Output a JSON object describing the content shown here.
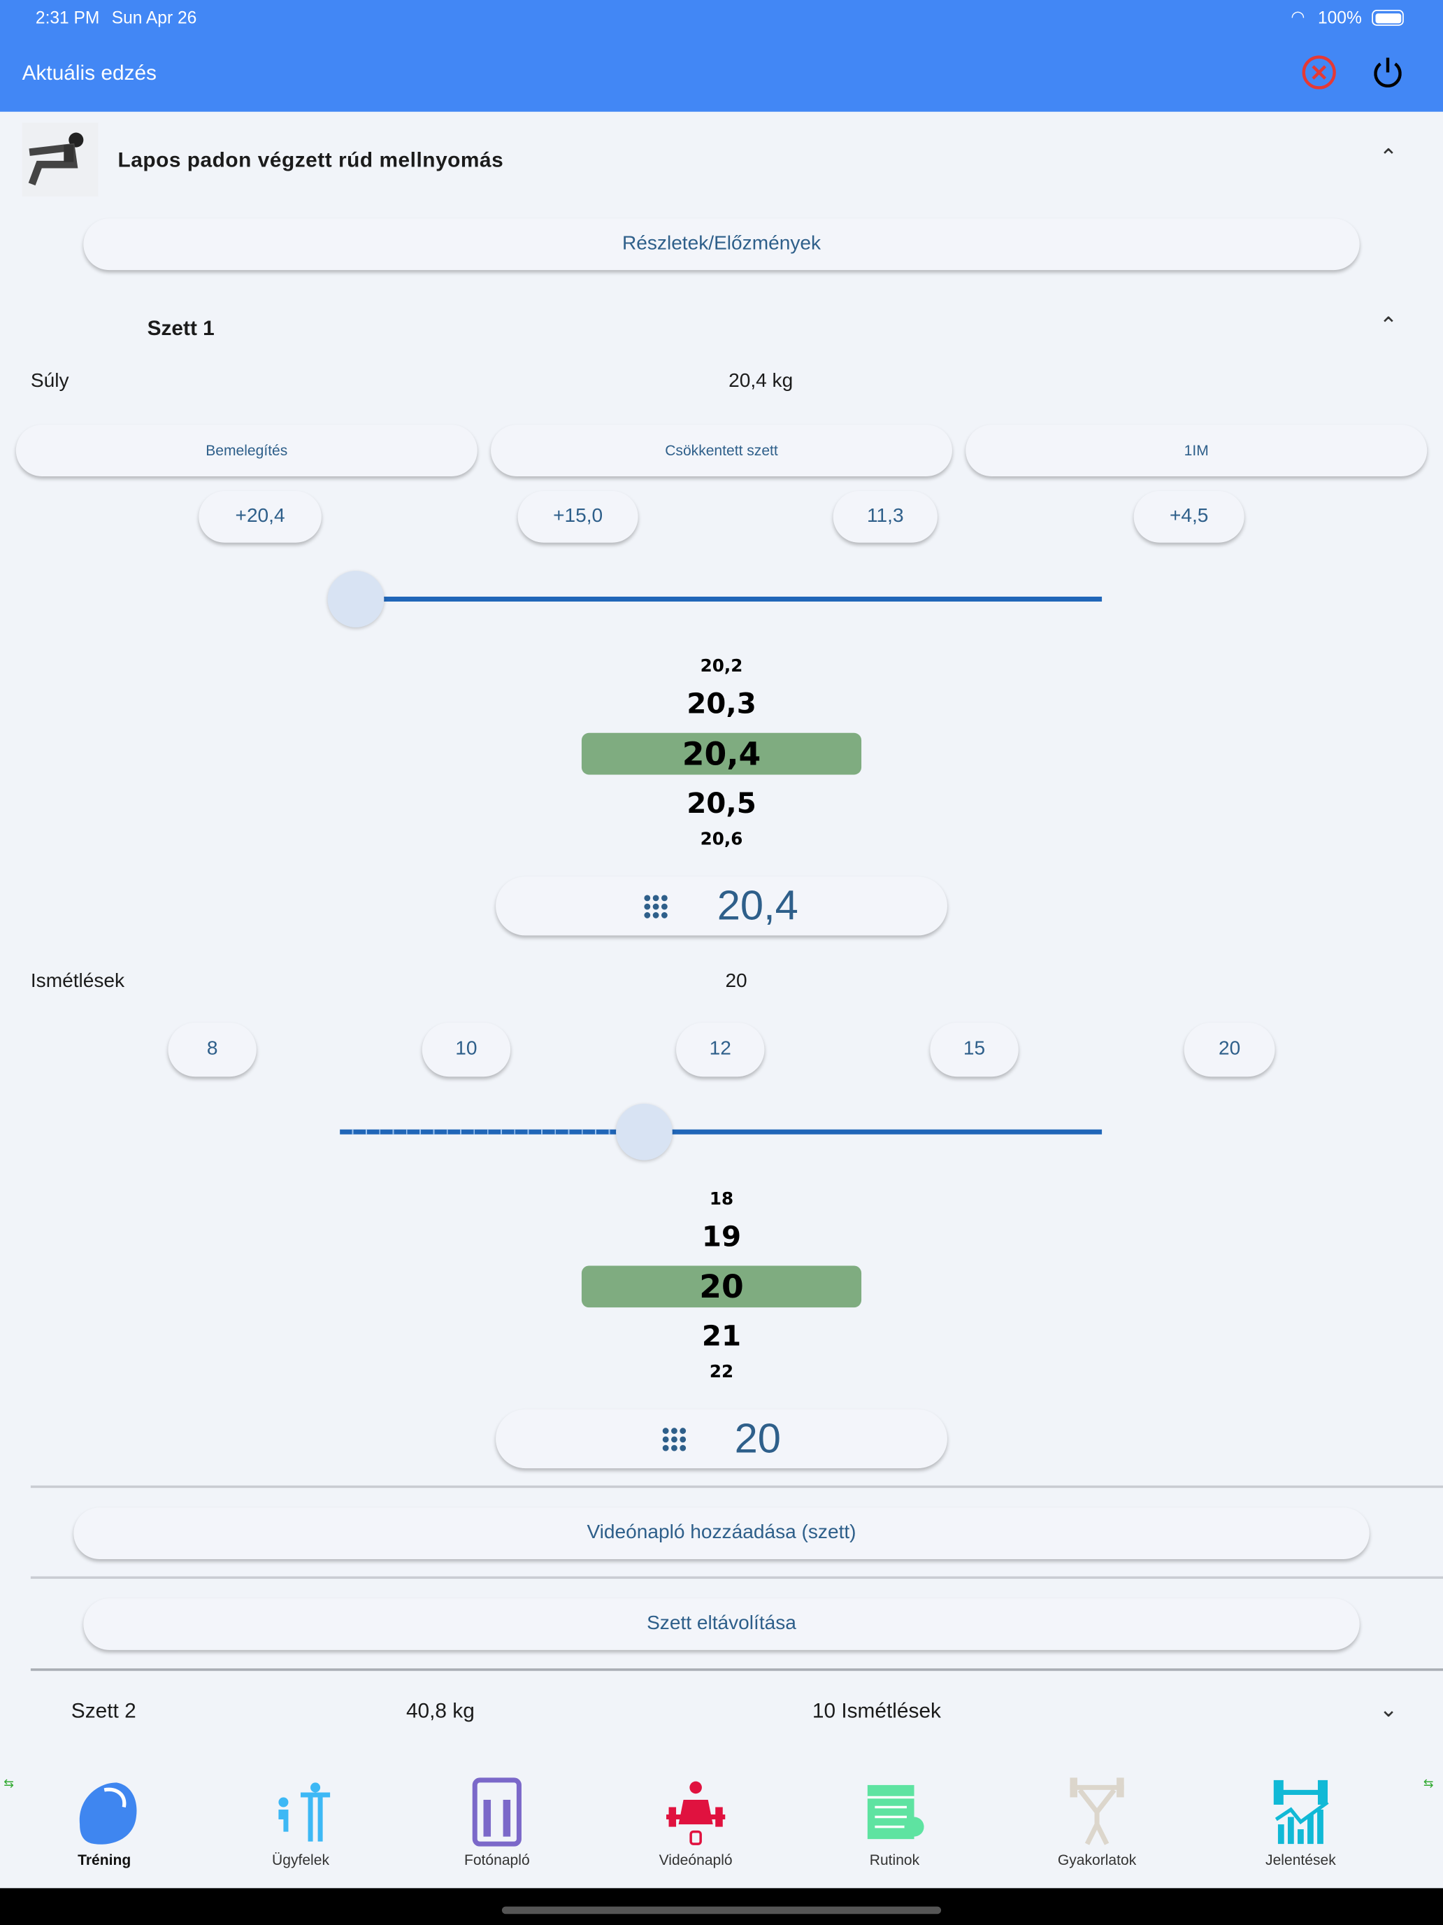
{
  "status_bar": {
    "time": "2:31 PM",
    "date": "Sun Apr 26",
    "battery": "100%"
  },
  "app_bar": {
    "title": "Aktuális edzés"
  },
  "colors": {
    "app_bar": "#4287f5",
    "accent": "#2066b8",
    "selected": "#7fac80",
    "cancel": "#e53935"
  },
  "exercise": {
    "title": "Lapos padon végzett rúd mellnyomás",
    "details_button": "Részletek/Előzmények"
  },
  "set1": {
    "title": "Szett 1",
    "weight_label": "Súly",
    "weight_value": "20,4 kg",
    "type_buttons": [
      "Bemelegítés",
      "Csökkentett szett",
      "1IM"
    ],
    "weight_quick": [
      "+20,4",
      "+15,0",
      "11,3",
      "+4,5"
    ],
    "weight_slider_fraction": 0.0,
    "weight_picker": [
      "20,2",
      "20,3",
      "20,4",
      "20,5",
      "20,6"
    ],
    "weight_input": "20,4",
    "reps_label": "Ismétlések",
    "reps_value": "20",
    "reps_quick": [
      "8",
      "10",
      "12",
      "15",
      "20"
    ],
    "reps_slider_fraction": 0.4,
    "reps_picker": [
      "18",
      "19",
      "20",
      "21",
      "22"
    ],
    "reps_input": "20",
    "video_button": "Videónapló hozzáadása (szett)",
    "remove_button": "Szett eltávolítása"
  },
  "set2": {
    "title": "Szett 2",
    "weight": "40,8 kg",
    "reps": "10 Ismétlések"
  },
  "nav": [
    {
      "label": "Tréning",
      "icon": "bicep-icon",
      "color": "#3f86f0"
    },
    {
      "label": "Ügyfelek",
      "icon": "clients-icon",
      "color": "#3db8f5"
    },
    {
      "label": "Fotónapló",
      "icon": "photo-log-icon",
      "color": "#7b68c9"
    },
    {
      "label": "Videónapló",
      "icon": "video-log-icon",
      "color": "#e0123f"
    },
    {
      "label": "Rutinok",
      "icon": "calendar-icon",
      "color": "#5ee3a1"
    },
    {
      "label": "Gyakorlatok",
      "icon": "weightlifter-icon",
      "color": "#dcd6cc"
    },
    {
      "label": "Jelentések",
      "icon": "reports-icon",
      "color": "#11b9d6"
    }
  ]
}
